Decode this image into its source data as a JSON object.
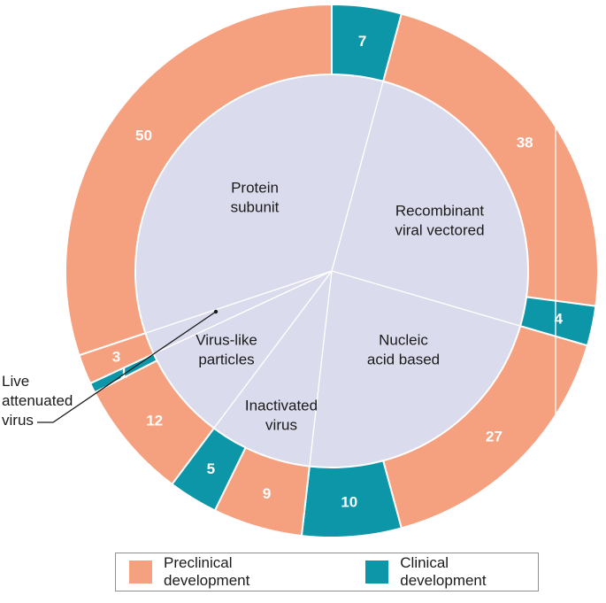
{
  "chart_data": {
    "type": "donut",
    "description": "Inner pie of vaccine platform categories with outer ring segments counting candidates in preclinical vs clinical development",
    "platforms": [
      {
        "label": "Protein subunit",
        "label_lines": [
          "Protein",
          "subunit"
        ],
        "preclinical": 50,
        "clinical": 7
      },
      {
        "label": "Recombinant viral vectored",
        "label_lines": [
          "Recombinant",
          "viral vectored"
        ],
        "preclinical": 38,
        "clinical": 4
      },
      {
        "label": "Nucleic acid based",
        "label_lines": [
          "Nucleic",
          "acid based"
        ],
        "preclinical": 27,
        "clinical": 10
      },
      {
        "label": "Inactivated virus",
        "label_lines": [
          "Inactivated",
          "virus"
        ],
        "preclinical": 9,
        "clinical": 5
      },
      {
        "label": "Virus-like particles",
        "label_lines": [
          "Virus-like",
          "particles"
        ],
        "preclinical": 12,
        "clinical": 1
      },
      {
        "label": "Live attenuated virus",
        "label_lines": [
          "Live",
          "attenuated",
          "virus"
        ],
        "preclinical": 3,
        "clinical": 0
      }
    ],
    "ring_numbers_clockwise_from_top": [
      7,
      38,
      4,
      27,
      10,
      9,
      5,
      12,
      1,
      3,
      50
    ],
    "legend": [
      {
        "label": "Preclinical development",
        "color": "#f5a17f"
      },
      {
        "label": "Clinical development",
        "color": "#0d95a8"
      }
    ],
    "colors": {
      "preclinical": "#f5a17f",
      "clinical": "#0d95a8",
      "pie_fill": "#dadbec",
      "divider": "#ffffff",
      "text_dark": "#1b1b1b",
      "count_text": "#ffffff"
    },
    "legend_position": "bottom"
  }
}
